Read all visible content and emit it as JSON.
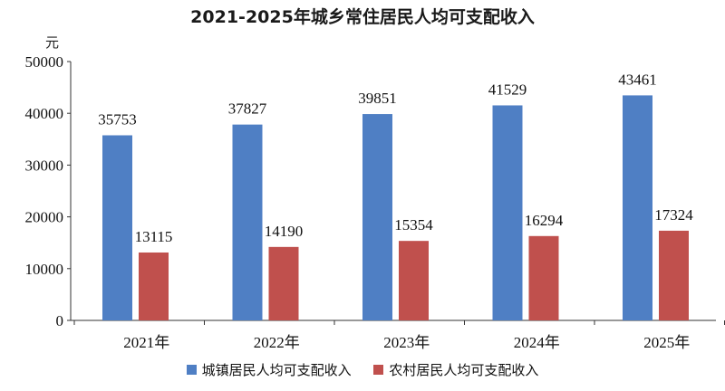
{
  "chart_data": {
    "type": "bar",
    "title": "2021-2025年城乡常住居民人均可支配收入",
    "ylabel": "元",
    "xlabel": "",
    "categories": [
      "2021年",
      "2022年",
      "2023年",
      "2024年",
      "2025年"
    ],
    "ylim": [
      0,
      50000
    ],
    "yticks": [
      0,
      10000,
      20000,
      30000,
      40000,
      50000
    ],
    "grid": false,
    "legend_position": "bottom",
    "series": [
      {
        "name": "城镇居民人均可支配收入",
        "color": "#4F7FC4",
        "values": [
          35753,
          37827,
          39851,
          41529,
          43461
        ]
      },
      {
        "name": "农村居民人均可支配收入",
        "color": "#C0504D",
        "values": [
          13115,
          14190,
          15354,
          16294,
          17324
        ]
      }
    ]
  }
}
